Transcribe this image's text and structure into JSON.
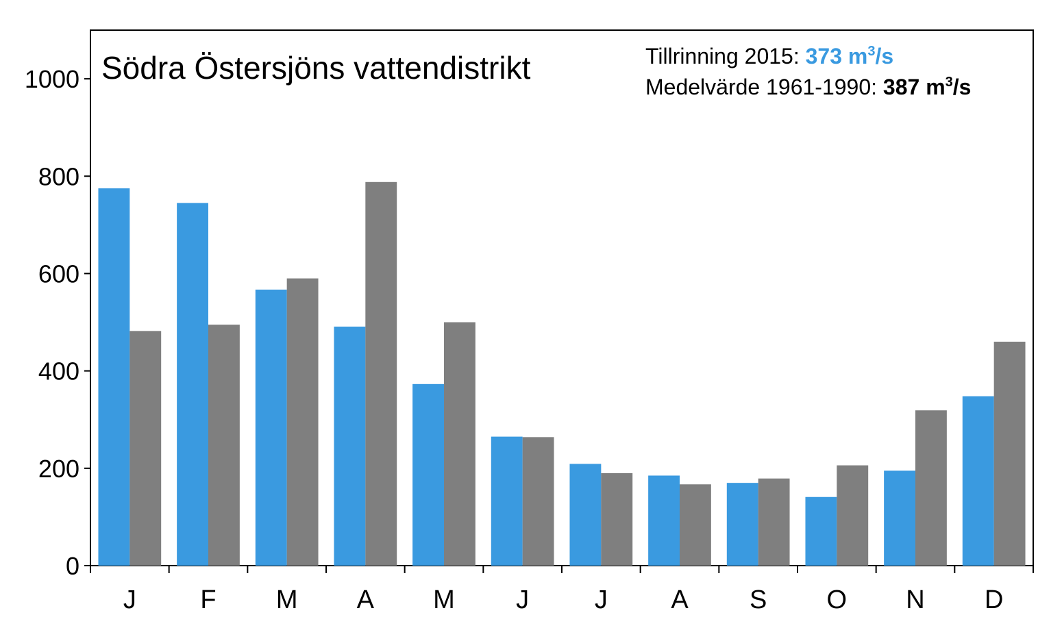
{
  "chart_data": {
    "type": "bar",
    "title": "Södra Östersjöns vattendistrikt",
    "xlabel": "",
    "ylabel": "",
    "categories": [
      "J",
      "F",
      "M",
      "A",
      "M",
      "J",
      "J",
      "A",
      "S",
      "O",
      "N",
      "D"
    ],
    "series": [
      {
        "color": "#3a9ae0",
        "values": [
          775,
          745,
          567,
          491,
          373,
          265,
          209,
          185,
          170,
          141,
          195,
          348
        ]
      },
      {
        "color": "#7f7f7f",
        "values": [
          482,
          495,
          590,
          788,
          500,
          264,
          190,
          167,
          179,
          206,
          319,
          460
        ]
      }
    ],
    "ylim": [
      0,
      1100
    ],
    "yticks": [
      0,
      200,
      400,
      600,
      800,
      1000
    ],
    "grid": false,
    "annotations": [
      {
        "label": "Tillrinning 2015: ",
        "value": "373 m",
        "sup": "3",
        "unit": "/s",
        "value_color": "#3a9ae0"
      },
      {
        "label": "Medelvärde 1961-1990: ",
        "value": "387 m",
        "sup": "3",
        "unit": "/s",
        "value_color": "#000000"
      }
    ]
  }
}
